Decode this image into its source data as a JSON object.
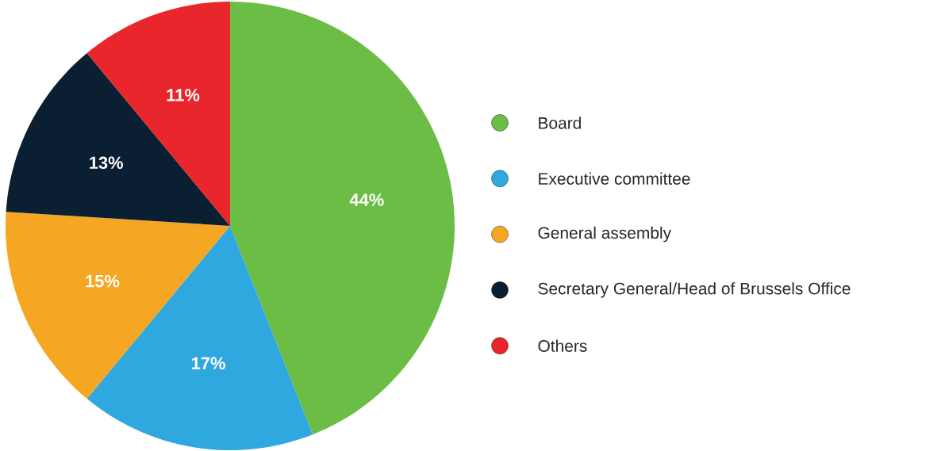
{
  "chart_data": {
    "type": "pie",
    "categories": [
      "Board",
      "Executive committee",
      "General assembly",
      "Secretary General/Head of Brussels Office",
      "Others"
    ],
    "values": [
      44,
      17,
      15,
      13,
      11
    ],
    "value_labels": [
      "44%",
      "17%",
      "15%",
      "13%",
      "11%"
    ],
    "colors": [
      "#6cbd45",
      "#2fa8e0",
      "#f5a623",
      "#0b1f33",
      "#e8262b"
    ],
    "legend": "right"
  }
}
